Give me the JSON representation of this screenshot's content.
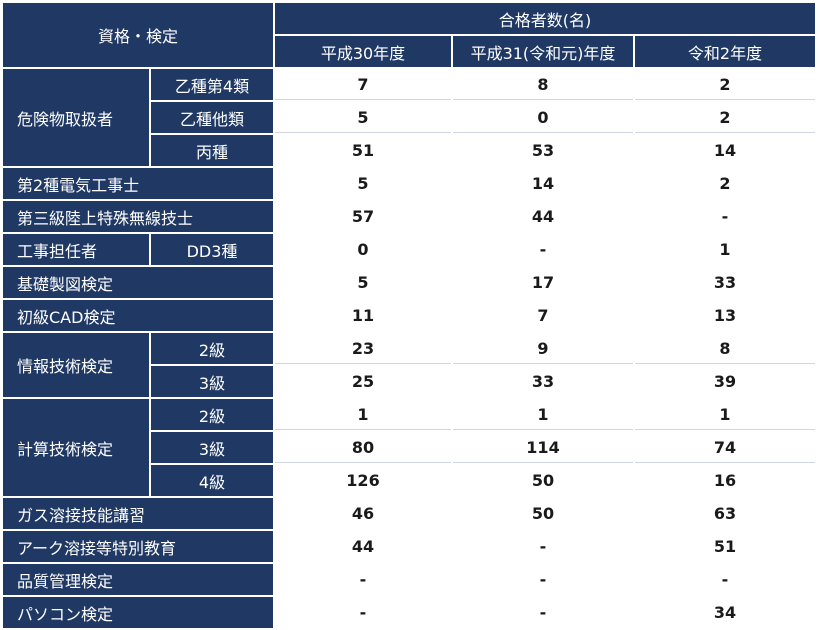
{
  "header": {
    "category": "資格・検定",
    "count_group": "合格者数(名)",
    "years": [
      "平成30年度",
      "平成31(令和元)年度",
      "令和2年度"
    ]
  },
  "groups": [
    {
      "name": "危険物取扱者",
      "rows": [
        {
          "sub": "乙種第4類",
          "values": [
            "7",
            "8",
            "2"
          ]
        },
        {
          "sub": "乙種他類",
          "values": [
            "5",
            "0",
            "2"
          ]
        },
        {
          "sub": "丙種",
          "values": [
            "51",
            "53",
            "14"
          ]
        }
      ]
    },
    {
      "name": "第2種電気工事士",
      "rows": [
        {
          "sub": "",
          "values": [
            "5",
            "14",
            "2"
          ]
        }
      ]
    },
    {
      "name": "第三級陸上特殊無線技士",
      "rows": [
        {
          "sub": "",
          "values": [
            "57",
            "44",
            "-"
          ]
        }
      ]
    },
    {
      "name": "工事担任者",
      "rows": [
        {
          "sub": "DD3種",
          "values": [
            "0",
            "-",
            "1"
          ]
        }
      ]
    },
    {
      "name": "基礎製図検定",
      "rows": [
        {
          "sub": "",
          "values": [
            "5",
            "17",
            "33"
          ]
        }
      ]
    },
    {
      "name": "初級CAD検定",
      "rows": [
        {
          "sub": "",
          "values": [
            "11",
            "7",
            "13"
          ]
        }
      ]
    },
    {
      "name": "情報技術検定",
      "rows": [
        {
          "sub": "2級",
          "values": [
            "23",
            "9",
            "8"
          ]
        },
        {
          "sub": "3級",
          "values": [
            "25",
            "33",
            "39"
          ]
        }
      ]
    },
    {
      "name": "計算技術検定",
      "rows": [
        {
          "sub": "2級",
          "values": [
            "1",
            "1",
            "1"
          ]
        },
        {
          "sub": "3級",
          "values": [
            "80",
            "114",
            "74"
          ]
        },
        {
          "sub": "4級",
          "values": [
            "126",
            "50",
            "16"
          ]
        }
      ]
    },
    {
      "name": "ガス溶接技能講習",
      "rows": [
        {
          "sub": "",
          "values": [
            "46",
            "50",
            "63"
          ]
        }
      ]
    },
    {
      "name": "アーク溶接等特別教育",
      "rows": [
        {
          "sub": "",
          "values": [
            "44",
            "-",
            "51"
          ]
        }
      ]
    },
    {
      "name": "品質管理検定",
      "rows": [
        {
          "sub": "",
          "values": [
            "-",
            "-",
            "-"
          ]
        }
      ]
    },
    {
      "name": "パソコン検定",
      "rows": [
        {
          "sub": "",
          "values": [
            "-",
            "-",
            "34"
          ]
        }
      ]
    }
  ]
}
